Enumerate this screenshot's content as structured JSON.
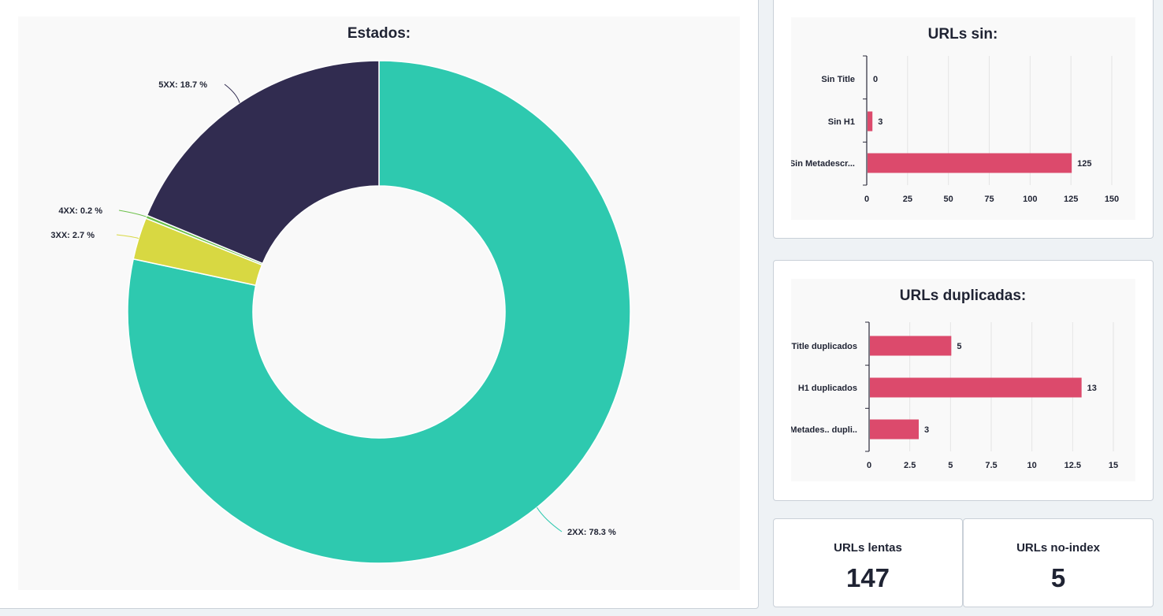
{
  "chart_data": [
    {
      "type": "pie",
      "variant": "donut",
      "title": "Estados:",
      "categories": [
        "2XX",
        "3XX",
        "4XX",
        "5XX"
      ],
      "labels": [
        "2XX: 78.3 %",
        "3XX: 2.7 %",
        "4XX: 0.2 %",
        "5XX: 18.7 %"
      ],
      "values": [
        78.3,
        2.7,
        0.2,
        18.7
      ],
      "colors": [
        "#2ec9af",
        "#d8d842",
        "#6cc04a",
        "#312c50"
      ]
    },
    {
      "type": "bar",
      "orientation": "horizontal",
      "title": "URLs sin:",
      "categories": [
        "Sin Title",
        "Sin H1",
        "Sin Metadescr..."
      ],
      "values": [
        0,
        3,
        125
      ],
      "xlim": [
        0,
        150
      ],
      "ticks": [
        "0",
        "25",
        "50",
        "75",
        "100",
        "125",
        "150"
      ],
      "tick_values": [
        0,
        25,
        50,
        75,
        100,
        125,
        150
      ],
      "color": "#dc4a6c",
      "grid": true
    },
    {
      "type": "bar",
      "orientation": "horizontal",
      "title": "URLs duplicadas:",
      "categories": [
        "Title duplicados",
        "H1 duplicados",
        "Metades.. dupli.."
      ],
      "values": [
        5,
        13,
        3
      ],
      "xlim": [
        0,
        15
      ],
      "ticks": [
        "0",
        "2.5",
        "5",
        "7.5",
        "10",
        "12.5",
        "15"
      ],
      "tick_values": [
        0,
        2.5,
        5,
        7.5,
        10,
        12.5,
        15
      ],
      "color": "#dc4a6c",
      "grid": true
    }
  ],
  "kpis": {
    "slow": {
      "label": "URLs lentas",
      "value": "147"
    },
    "noindex": {
      "label": "URLs no-index",
      "value": "5"
    }
  }
}
